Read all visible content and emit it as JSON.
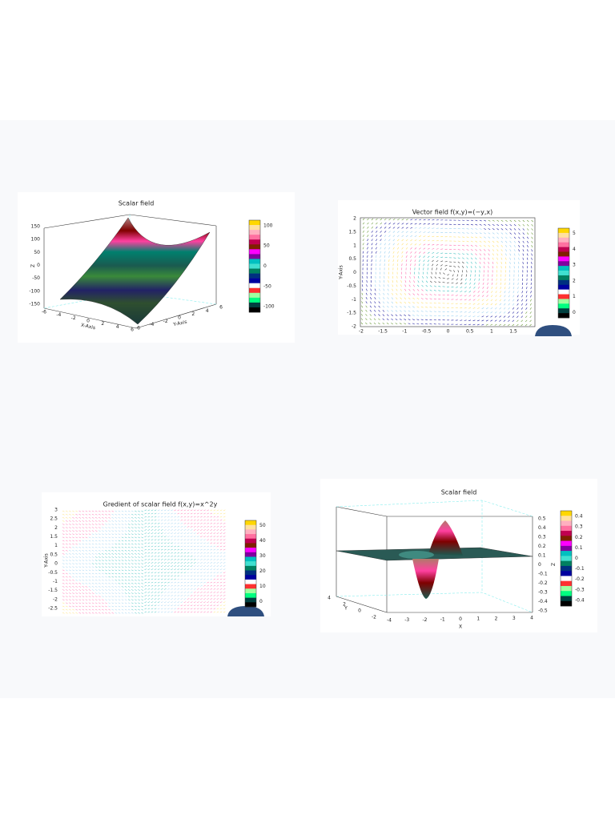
{
  "panels": [
    {
      "title": "Scalar field",
      "x_label": "X-Axis",
      "y_label": "Y-Axis",
      "z_label": "Z",
      "z_ticks": [
        "150",
        "100",
        "50",
        "0",
        "-50",
        "-100",
        "-150"
      ],
      "x_ticks": [
        "-6",
        "-4",
        "-2",
        "0",
        "2",
        "4",
        "6"
      ],
      "y_ticks": [
        "-6",
        "-4",
        "-2",
        "0",
        "2",
        "4",
        "6"
      ],
      "colorbar_ticks": [
        "100",
        "50",
        "0",
        "-50",
        "-100"
      ]
    },
    {
      "title": "Vector field f(x,y)=(−y,x)",
      "y_label": "Y-Axis",
      "y_ticks": [
        "2",
        "1.5",
        "1",
        "0.5",
        "0",
        "-0.5",
        "-1",
        "-1.5",
        "-2"
      ],
      "x_ticks": [
        "-2",
        "-1.5",
        "-1",
        "-0.5",
        "0",
        "0.5",
        "1",
        "1.5"
      ],
      "colorbar_ticks": [
        "5",
        "4",
        "3",
        "2",
        "1",
        "0"
      ]
    },
    {
      "title": "Gredient of scalar field f(x,y)=x^2y",
      "y_label": "Y-Axis",
      "y_ticks": [
        "3",
        "2.5",
        "2",
        "1.5",
        "1",
        "0.5",
        "0",
        "-0.5",
        "-1",
        "-1.5",
        "-2",
        "-2.5"
      ],
      "colorbar_ticks": [
        "50",
        "40",
        "30",
        "20",
        "10",
        "0"
      ]
    },
    {
      "title": "Scalar field",
      "x_label": "X",
      "y_label": "Y",
      "z_label": "Z",
      "z_ticks": [
        "0.5",
        "0.4",
        "0.3",
        "0.2",
        "0.1",
        "0",
        "-0.1",
        "-0.2",
        "-0.3",
        "-0.4",
        "-0.5"
      ],
      "x_ticks": [
        "-4",
        "-3",
        "-2",
        "-1",
        "0",
        "1",
        "2",
        "3",
        "4"
      ],
      "y_ticks": [
        "4",
        "2",
        "0",
        "-2"
      ],
      "colorbar_ticks": [
        "0.4",
        "0.3",
        "0.2",
        "0.1",
        "0",
        "-0.1",
        "-0.2",
        "-0.3",
        "-0.4"
      ]
    }
  ]
}
